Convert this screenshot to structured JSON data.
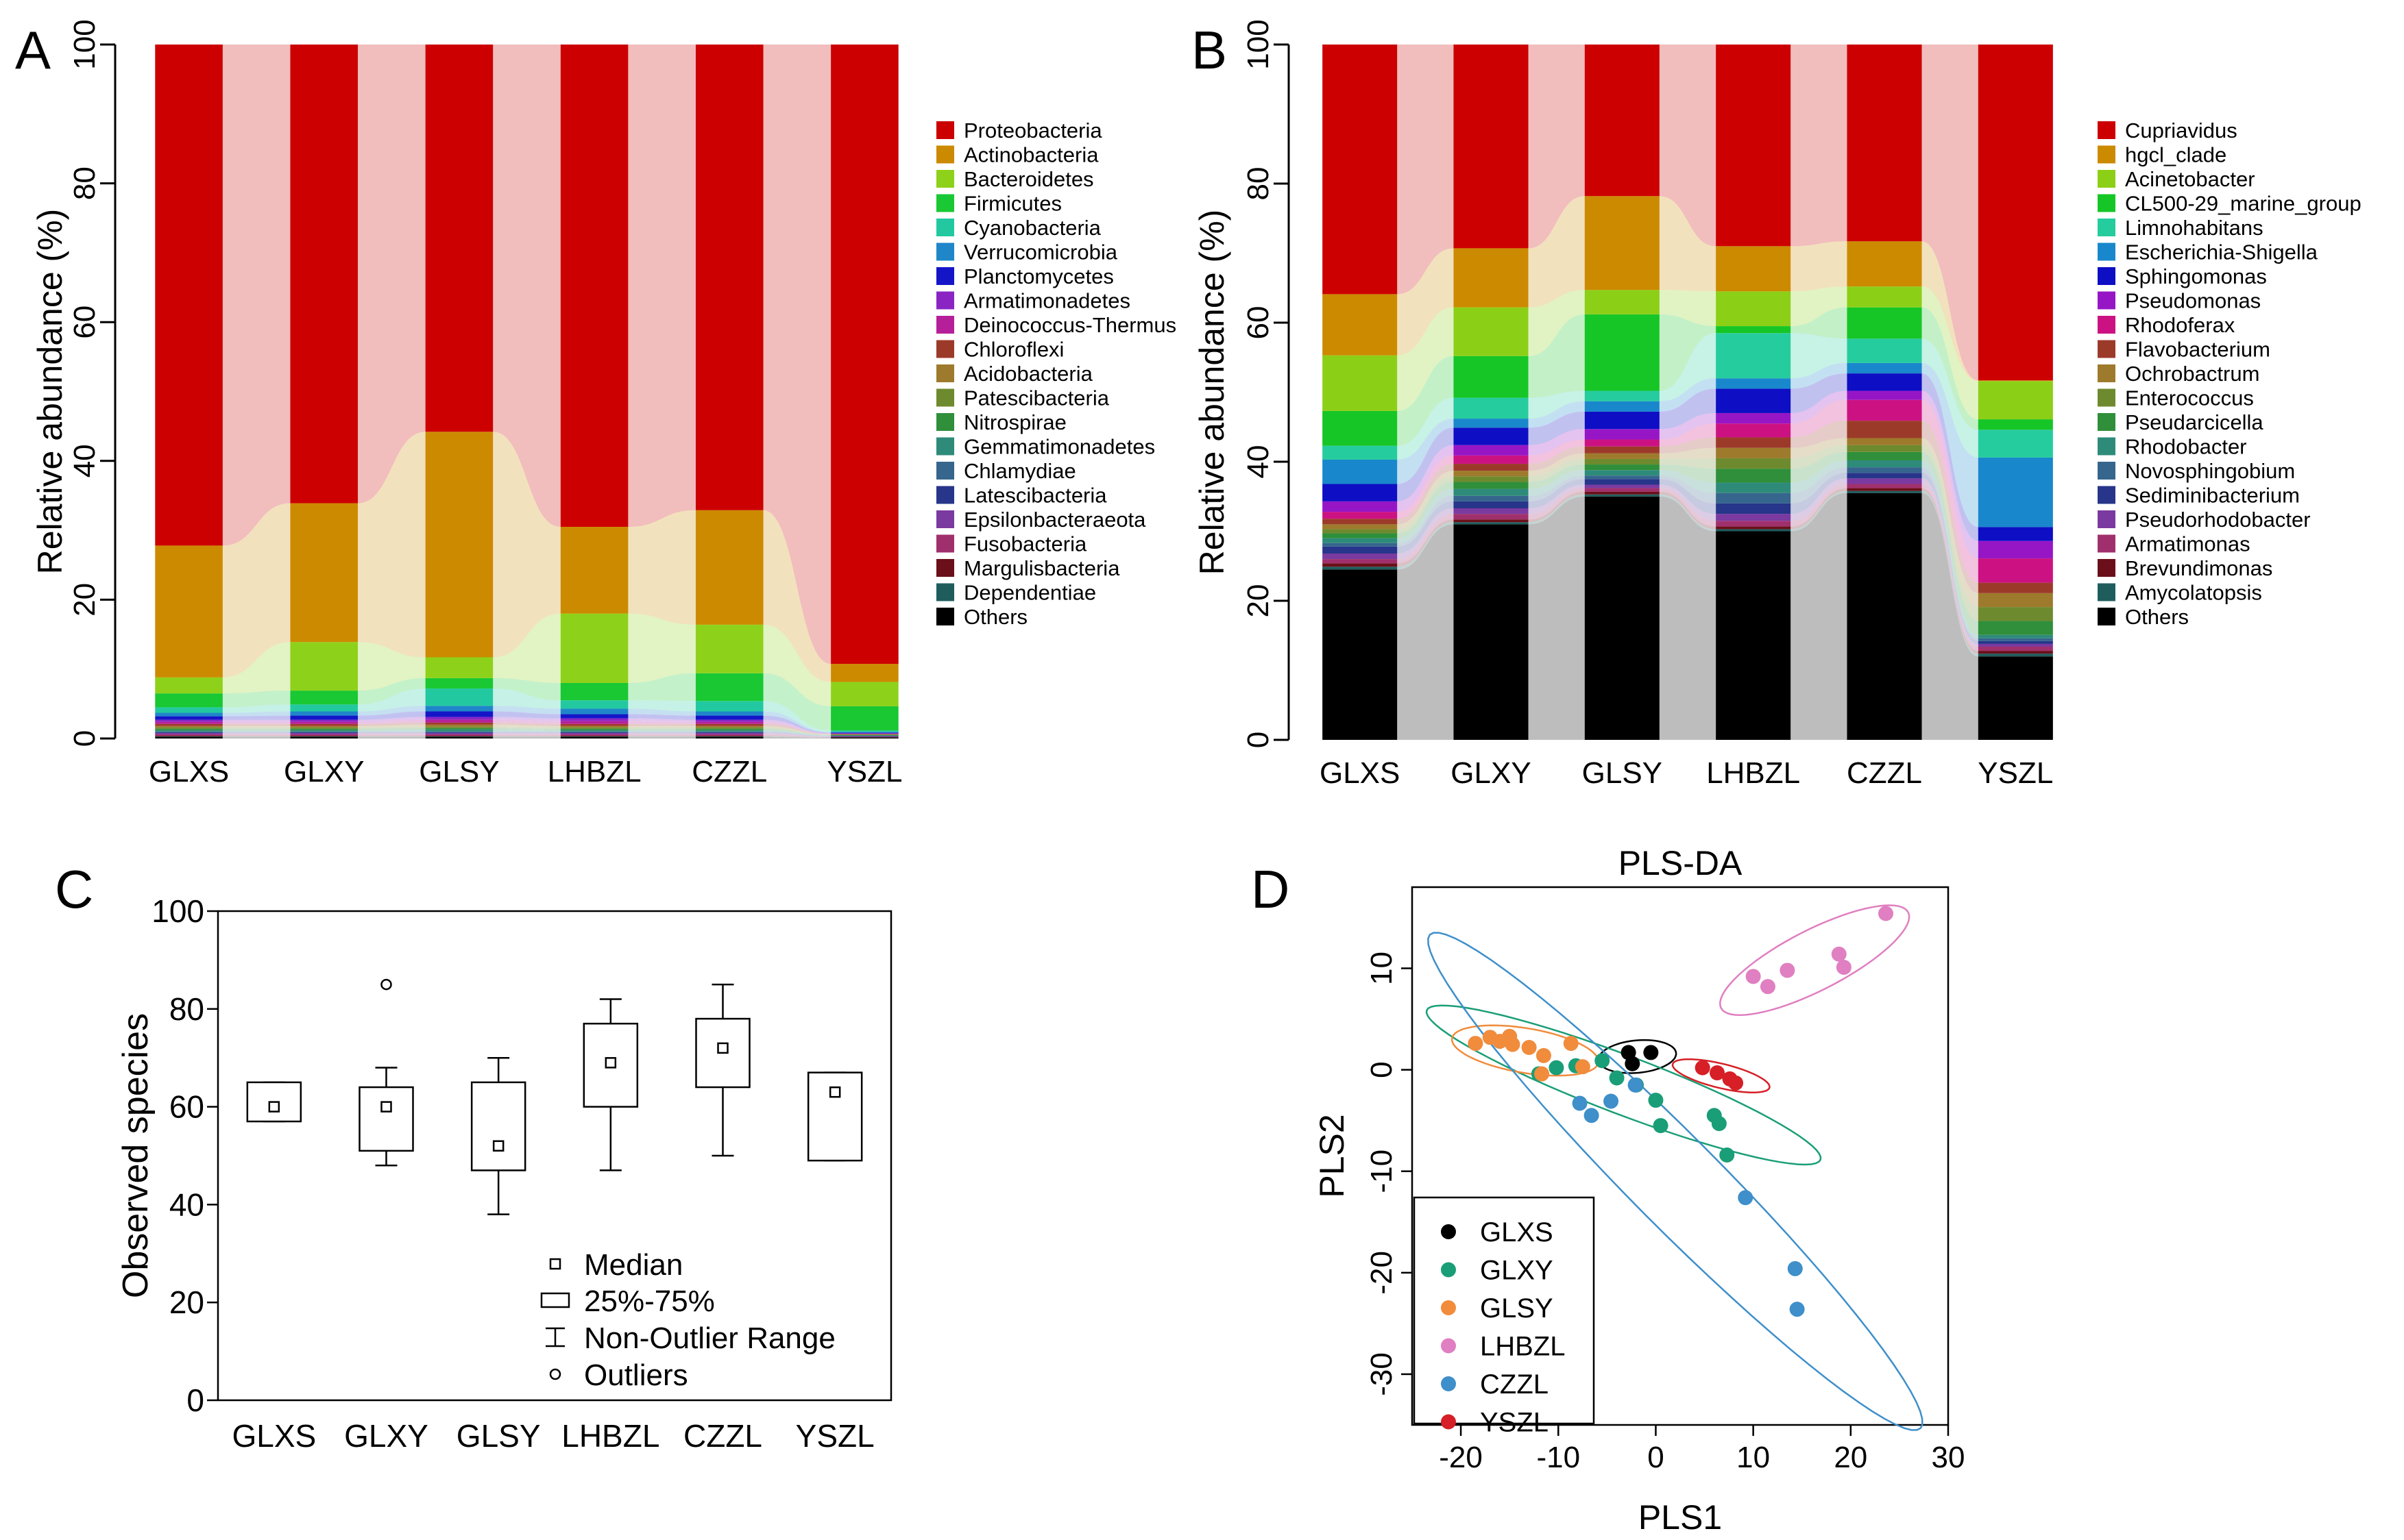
{
  "chart_data": [
    {
      "panel": "A",
      "type": "bar",
      "stacked": true,
      "ylabel": "Relative abundance (%)",
      "ylim": [
        0,
        100
      ],
      "yticks": [
        0,
        20,
        40,
        60,
        80,
        100
      ],
      "categories": [
        "GLXS",
        "GLXY",
        "GLSY",
        "LHBZL",
        "CZZL",
        "YSZL"
      ],
      "series": [
        {
          "name": "Others",
          "color": "#000000",
          "values": [
            0.2,
            0.2,
            0.2,
            0.2,
            0.2,
            0.1
          ]
        },
        {
          "name": "Dependentiae",
          "color": "#1f5d5d",
          "values": [
            0.1,
            0.1,
            0.1,
            0.1,
            0.1,
            0.05
          ]
        },
        {
          "name": "Margulisbacteria",
          "color": "#6b0f1a",
          "values": [
            0.1,
            0.1,
            0.1,
            0.1,
            0.1,
            0.05
          ]
        },
        {
          "name": "Fusobacteria",
          "color": "#a0306d",
          "values": [
            0.2,
            0.2,
            0.2,
            0.2,
            0.2,
            0.05
          ]
        },
        {
          "name": "Epsilonbacteraeota",
          "color": "#7a3aa0",
          "values": [
            0.2,
            0.2,
            0.2,
            0.2,
            0.2,
            0.05
          ]
        },
        {
          "name": "Latescibacteria",
          "color": "#27358a",
          "values": [
            0.1,
            0.1,
            0.1,
            0.1,
            0.1,
            0.05
          ]
        },
        {
          "name": "Chlamydiae",
          "color": "#36658d",
          "values": [
            0.1,
            0.1,
            0.1,
            0.1,
            0.1,
            0.05
          ]
        },
        {
          "name": "Gemmatimonadetes",
          "color": "#2e8b7a",
          "values": [
            0.2,
            0.2,
            0.3,
            0.2,
            0.2,
            0.05
          ]
        },
        {
          "name": "Nitrospirae",
          "color": "#2f8f3a",
          "values": [
            0.2,
            0.2,
            0.2,
            0.2,
            0.2,
            0.05
          ]
        },
        {
          "name": "Patescibacteria",
          "color": "#6e8a2e",
          "values": [
            0.2,
            0.2,
            0.2,
            0.2,
            0.2,
            0.05
          ]
        },
        {
          "name": "Acidobacteria",
          "color": "#9e7a2c",
          "values": [
            0.2,
            0.2,
            0.3,
            0.2,
            0.2,
            0.05
          ]
        },
        {
          "name": "Chloroflexi",
          "color": "#9c3a2a",
          "values": [
            0.3,
            0.3,
            0.3,
            0.3,
            0.3,
            0.05
          ]
        },
        {
          "name": "Deinococcus-Thermus",
          "color": "#b5209a",
          "values": [
            0.3,
            0.3,
            0.4,
            0.4,
            0.3,
            0.05
          ]
        },
        {
          "name": "Armatimonadetes",
          "color": "#8a25c4",
          "values": [
            0.3,
            0.3,
            0.4,
            0.4,
            0.3,
            0.05
          ]
        },
        {
          "name": "Planctomycetes",
          "color": "#1515c8",
          "values": [
            0.5,
            0.6,
            0.8,
            0.6,
            0.6,
            0.1
          ]
        },
        {
          "name": "Verrucomicrobia",
          "color": "#1f86c9",
          "values": [
            0.5,
            0.6,
            0.8,
            0.8,
            0.6,
            0.1
          ]
        },
        {
          "name": "Cyanobacteria",
          "color": "#22c9a0",
          "values": [
            0.8,
            1.0,
            2.5,
            1.2,
            1.5,
            0.2
          ]
        },
        {
          "name": "Firmicutes",
          "color": "#19c832",
          "values": [
            2.0,
            2.0,
            1.5,
            2.5,
            4.0,
            3.5
          ]
        },
        {
          "name": "Bacteroidetes",
          "color": "#8ed11a",
          "values": [
            2.3,
            7.0,
            3.0,
            10.0,
            7.0,
            3.5
          ]
        },
        {
          "name": "Actinobacteria",
          "color": "#cc8a00",
          "values": [
            19.0,
            20.0,
            32.5,
            12.5,
            16.5,
            2.6
          ]
        },
        {
          "name": "Proteobacteria",
          "color": "#cc0000",
          "values": [
            72.7,
            66.7,
            55.6,
            69.7,
            66.8,
            89.5
          ]
        }
      ]
    },
    {
      "panel": "B",
      "type": "bar",
      "stacked": true,
      "ylabel": "Relative abundance (%)",
      "ylim": [
        0,
        100
      ],
      "yticks": [
        0,
        20,
        40,
        60,
        80,
        100
      ],
      "categories": [
        "GLXS",
        "GLXY",
        "GLSY",
        "LHBZL",
        "CZZL",
        "YSZL"
      ],
      "series": [
        {
          "name": "Others",
          "color": "#000000",
          "values": [
            24.5,
            31.0,
            35.0,
            30.0,
            35.5,
            12.0
          ]
        },
        {
          "name": "Amycolatopsis",
          "color": "#1f5d5d",
          "values": [
            0.4,
            0.3,
            0.3,
            0.3,
            0.3,
            0.4
          ]
        },
        {
          "name": "Brevundimonas",
          "color": "#6b0f1a",
          "values": [
            0.5,
            0.4,
            0.4,
            0.4,
            0.4,
            0.4
          ]
        },
        {
          "name": "Armatimonas",
          "color": "#a0306d",
          "values": [
            0.6,
            0.8,
            0.5,
            0.8,
            0.6,
            0.6
          ]
        },
        {
          "name": "Pseudorhodobacter",
          "color": "#7a3aa0",
          "values": [
            0.8,
            0.8,
            0.5,
            1.0,
            0.8,
            0.4
          ]
        },
        {
          "name": "Sediminibacterium",
          "color": "#27358a",
          "values": [
            1.0,
            1.0,
            0.8,
            1.5,
            0.8,
            0.4
          ]
        },
        {
          "name": "Novosphingobium",
          "color": "#36658d",
          "values": [
            0.5,
            0.8,
            0.5,
            1.5,
            0.8,
            0.4
          ]
        },
        {
          "name": "Rhodobacter",
          "color": "#2e8b7a",
          "values": [
            0.7,
            1.0,
            0.8,
            1.5,
            1.0,
            0.5
          ]
        },
        {
          "name": "Pseudarcicella",
          "color": "#2f8f3a",
          "values": [
            0.7,
            1.0,
            0.8,
            2.0,
            1.2,
            2.0
          ]
        },
        {
          "name": "Enterococcus",
          "color": "#6e8a2e",
          "values": [
            0.6,
            0.8,
            0.8,
            1.5,
            1.0,
            2.0
          ]
        },
        {
          "name": "Ochrobactrum",
          "color": "#9e7a2c",
          "values": [
            0.7,
            0.8,
            0.8,
            1.5,
            1.0,
            2.0
          ]
        },
        {
          "name": "Flavobacterium",
          "color": "#9c3a2a",
          "values": [
            0.8,
            1.0,
            1.0,
            1.5,
            2.5,
            1.5
          ]
        },
        {
          "name": "Rhodoferax",
          "color": "#cc1283",
          "values": [
            1.0,
            1.2,
            1.0,
            2.0,
            3.0,
            3.5
          ]
        },
        {
          "name": "Pseudomonas",
          "color": "#9616c6",
          "values": [
            1.5,
            1.5,
            1.5,
            1.5,
            1.3,
            2.5
          ]
        },
        {
          "name": "Sphingomonas",
          "color": "#0e0ec4",
          "values": [
            2.5,
            2.5,
            2.5,
            3.5,
            2.5,
            2.0
          ]
        },
        {
          "name": "Escherichia-Shigella",
          "color": "#1987cc",
          "values": [
            3.5,
            1.3,
            1.5,
            1.5,
            1.5,
            10.0
          ]
        },
        {
          "name": "Limnohabitans",
          "color": "#25cc9e",
          "values": [
            2.0,
            3.0,
            1.5,
            6.5,
            3.5,
            4.0
          ]
        },
        {
          "name": "CL500-29_marine_group",
          "color": "#16c626",
          "values": [
            5.0,
            6.0,
            11.0,
            1.0,
            4.5,
            1.5
          ]
        },
        {
          "name": "Acinetobacter",
          "color": "#8ccf17",
          "values": [
            8.0,
            7.0,
            3.5,
            5.0,
            3.0,
            5.5
          ]
        },
        {
          "name": "hgcl_clade",
          "color": "#cc8a00",
          "values": [
            8.8,
            8.5,
            13.5,
            6.5,
            6.5,
            0.1
          ]
        },
        {
          "name": "Cupriavidus",
          "color": "#cc0000",
          "values": [
            34.4,
            29.3,
            23.2,
            29.7,
            26.8,
            47.8
          ]
        }
      ]
    },
    {
      "panel": "C",
      "type": "box",
      "ylabel": "Observed species",
      "ylim": [
        0,
        100
      ],
      "yticks": [
        0,
        20,
        40,
        60,
        80,
        100
      ],
      "categories": [
        "GLXS",
        "GLXY",
        "GLSY",
        "LHBZL",
        "CZZL",
        "YSZL"
      ],
      "boxes": [
        {
          "median": 60,
          "q1": 57,
          "q3": 65,
          "whisker_low": 57,
          "whisker_high": 65,
          "outliers": []
        },
        {
          "median": 60,
          "q1": 51,
          "q3": 64,
          "whisker_low": 48,
          "whisker_high": 68,
          "outliers": [
            85
          ]
        },
        {
          "median": 52,
          "q1": 47,
          "q3": 65,
          "whisker_low": 38,
          "whisker_high": 70,
          "outliers": []
        },
        {
          "median": 69,
          "q1": 60,
          "q3": 77,
          "whisker_low": 47,
          "whisker_high": 82,
          "outliers": []
        },
        {
          "median": 72,
          "q1": 64,
          "q3": 78,
          "whisker_low": 50,
          "whisker_high": 85,
          "outliers": []
        },
        {
          "median": 63,
          "q1": 49,
          "q3": 67,
          "whisker_low": 49,
          "whisker_high": 67,
          "outliers": []
        }
      ],
      "legend": [
        "Median",
        "25%-75%",
        "Non-Outlier Range",
        "Outliers"
      ]
    },
    {
      "panel": "D",
      "type": "scatter",
      "title": "PLS-DA",
      "xlabel": "PLS1",
      "ylabel": "PLS2",
      "xlim": [
        -25,
        30
      ],
      "ylim": [
        -35,
        18
      ],
      "xticks": [
        -20,
        -10,
        0,
        10,
        20,
        30
      ],
      "yticks": [
        -30,
        -20,
        -10,
        0,
        10
      ],
      "series": [
        {
          "name": "GLXS",
          "color": "#000000",
          "points": [
            [
              -2.8,
              1.7
            ],
            [
              -0.5,
              1.7
            ],
            [
              -2.4,
              0.6
            ]
          ],
          "ellipse": {
            "cx": -1.9,
            "cy": 1.3,
            "a": 4.0,
            "b": 1.6,
            "angle": 5
          }
        },
        {
          "name": "GLXY",
          "color": "#1a9e77",
          "points": [
            [
              -12,
              -0.4
            ],
            [
              -10.2,
              0.2
            ],
            [
              -8.2,
              0.4
            ],
            [
              -5.5,
              0.9
            ],
            [
              -4,
              -0.8
            ],
            [
              -2,
              -1.5
            ],
            [
              0,
              -3
            ],
            [
              0.5,
              -5.5
            ],
            [
              6,
              -4.5
            ],
            [
              6.5,
              -5.3
            ],
            [
              7.3,
              -8.4
            ]
          ],
          "ellipse": {
            "cx": -3.3,
            "cy": -1.5,
            "a": 21.5,
            "b": 2.9,
            "angle": -20
          }
        },
        {
          "name": "GLSY",
          "color": "#f08c3c",
          "points": [
            [
              -18.5,
              2.6
            ],
            [
              -17,
              3.2
            ],
            [
              -16,
              2.8
            ],
            [
              -15,
              3.3
            ],
            [
              -14.7,
              2.5
            ],
            [
              -13,
              2.2
            ],
            [
              -11.5,
              1.4
            ],
            [
              -8.7,
              2.6
            ],
            [
              -7.5,
              0.3
            ],
            [
              -11.7,
              -0.4
            ]
          ],
          "ellipse": {
            "cx": -13.4,
            "cy": 1.9,
            "a": 7.6,
            "b": 2.2,
            "angle": -9
          }
        },
        {
          "name": "LHBZL",
          "color": "#e07fc1",
          "points": [
            [
              10,
              9.2
            ],
            [
              11.5,
              8.2
            ],
            [
              13.5,
              9.8
            ],
            [
              18.8,
              11.4
            ],
            [
              19.3,
              10.1
            ],
            [
              23.6,
              15.4
            ]
          ],
          "ellipse": {
            "cx": 16.3,
            "cy": 10.8,
            "a": 10.7,
            "b": 3.0,
            "angle": 26
          }
        },
        {
          "name": "CZZL",
          "color": "#3e8fca",
          "points": [
            [
              -7.8,
              -3.3
            ],
            [
              -6.6,
              -4.5
            ],
            [
              -4.6,
              -3.1
            ],
            [
              -2.1,
              -1.5
            ],
            [
              9.2,
              -12.6
            ],
            [
              14.3,
              -19.6
            ],
            [
              14.5,
              -23.6
            ]
          ],
          "ellipse": {
            "cx": 2.0,
            "cy": -11.0,
            "a": 35.0,
            "b": 4.5,
            "angle": -44
          }
        },
        {
          "name": "YSZL",
          "color": "#d61f26",
          "points": [
            [
              4.8,
              0.2
            ],
            [
              6.3,
              -0.3
            ],
            [
              7.6,
              -0.9
            ],
            [
              8.2,
              -1.3
            ]
          ],
          "ellipse": {
            "cx": 6.7,
            "cy": -0.6,
            "a": 5.1,
            "b": 1.2,
            "angle": -13
          }
        }
      ]
    }
  ],
  "panel_labels": {
    "a": "A",
    "b": "B",
    "c": "C",
    "d": "D"
  }
}
